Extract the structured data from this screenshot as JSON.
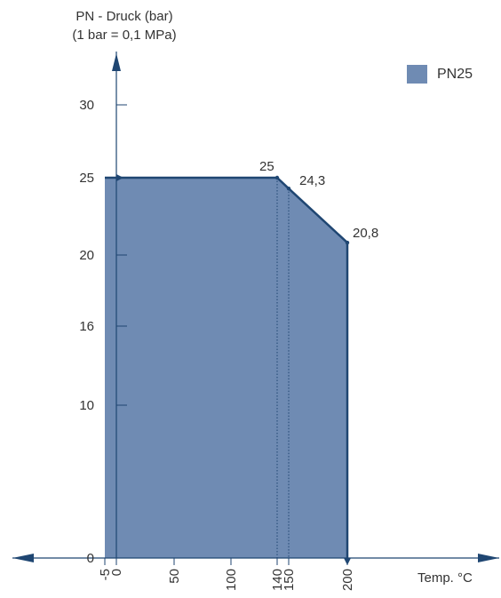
{
  "chart_data": {
    "type": "area",
    "ylabel_line1": "PN - Druck (bar)",
    "ylabel_line2": "(1 bar = 0,1 MPa)",
    "xlabel": "Temp. °C",
    "x_ticks": [
      "-5",
      "0",
      "50",
      "100",
      "140",
      "150",
      "200"
    ],
    "y_ticks": [
      "0",
      "10",
      "16",
      "20",
      "25",
      "30"
    ],
    "xlim": [
      -5,
      200
    ],
    "ylim": [
      0,
      30
    ],
    "series": [
      {
        "name": "PN25",
        "color": "#6f8bb3",
        "points": [
          {
            "x": -5,
            "y": 25
          },
          {
            "x": 0,
            "y": 25
          },
          {
            "x": 140,
            "y": 25
          },
          {
            "x": 150,
            "y": 24.3
          },
          {
            "x": 200,
            "y": 20.8
          },
          {
            "x": 200,
            "y": 0
          },
          {
            "x": -5,
            "y": 0
          }
        ]
      }
    ],
    "annotations": [
      {
        "text": "25",
        "x": 140,
        "y": 25
      },
      {
        "text": "24,3",
        "x": 150,
        "y": 24.3
      },
      {
        "text": "20,8",
        "x": 200,
        "y": 20.8
      }
    ],
    "axis_color": "#1f4672",
    "legend_position": "top-right"
  }
}
